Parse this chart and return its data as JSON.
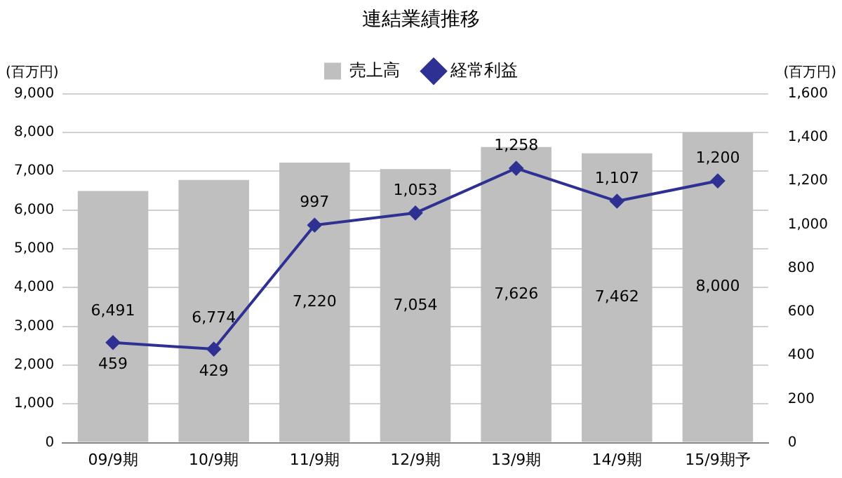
{
  "chart_data": {
    "type": "bar",
    "title": "連結業績推移",
    "ylabel": "(百万円)",
    "y2label": "(百万円)",
    "categories": [
      "09/9期",
      "10/9期",
      "11/9期",
      "12/9期",
      "13/9期",
      "14/9期",
      "15/9期予"
    ],
    "series": [
      {
        "name": "売上高",
        "color": "#bfbfbf",
        "values": [
          6491,
          6774,
          7220,
          7054,
          7626,
          7462,
          8000
        ],
        "value_labels": [
          "6,491",
          "6,774",
          "7,220",
          "7,054",
          "7,626",
          "7,462",
          "8,000"
        ]
      },
      {
        "name": "経常利益",
        "type": "line",
        "axis": "y2",
        "color": "#2e3192",
        "marker": "diamond",
        "values": [
          459,
          429,
          997,
          1053,
          1258,
          1107,
          1200
        ],
        "value_labels": [
          "459",
          "429",
          "997",
          "1,053",
          "1,258",
          "1,107",
          "1,200"
        ]
      }
    ],
    "ylim": [
      0,
      9000
    ],
    "yticks": [
      0,
      {
        "value": 1000,
        "label": "1,000"
      },
      {
        "value": 2000,
        "label": "2,000"
      },
      {
        "value": 3000,
        "label": "3,000"
      },
      {
        "value": 4000,
        "label": "4,000"
      },
      {
        "value": 5000,
        "label": "5,000"
      },
      {
        "value": 6000,
        "label": "6,000"
      },
      {
        "value": 7000,
        "label": "7,000"
      },
      {
        "value": 8000,
        "label": "8,000"
      },
      {
        "value": 9000,
        "label": "9,000"
      }
    ],
    "y2lim": [
      0,
      1600
    ],
    "y2ticks": [
      0,
      200,
      400,
      600,
      800,
      {
        "value": 1000,
        "label": "1,000"
      },
      {
        "value": 1200,
        "label": "1,200"
      },
      {
        "value": 1400,
        "label": "1,400"
      },
      {
        "value": 1600,
        "label": "1,600"
      }
    ],
    "grid": "y",
    "legend": "top"
  }
}
